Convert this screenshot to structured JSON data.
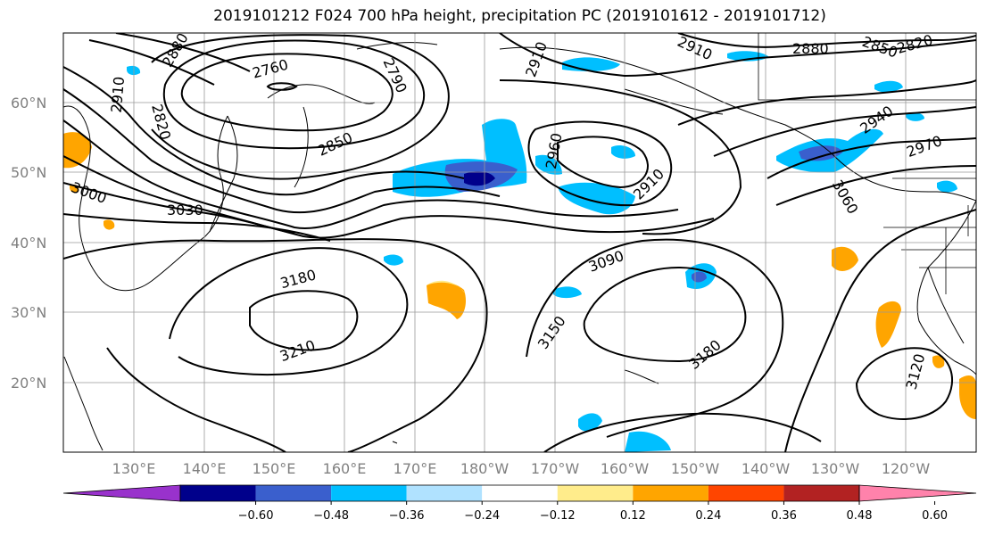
{
  "title": "2019101212 F024 700 hPa height, precipitation PC (2019101612 - 2019101712)",
  "lat_labels": [
    "60°N",
    "50°N",
    "40°N",
    "30°N",
    "20°N"
  ],
  "lon_labels": [
    "130°E",
    "140°E",
    "150°E",
    "160°E",
    "170°E",
    "180°W",
    "170°W",
    "160°W",
    "150°W",
    "140°W",
    "130°W",
    "120°W"
  ],
  "contour_labels": [
    "2880",
    "2760",
    "2790",
    "2910",
    "2820",
    "2850",
    "2910",
    "2880",
    "2850",
    "2820",
    "2940",
    "2970",
    "2910",
    "2960",
    "2910",
    "3060",
    "3000",
    "3030",
    "3090",
    "3180",
    "3150",
    "3180",
    "3210",
    "3120"
  ],
  "colorbar": {
    "ticks": [
      "−0.60",
      "−0.48",
      "−0.36",
      "−0.24",
      "−0.12",
      "0.12",
      "0.24",
      "0.36",
      "0.48",
      "0.60"
    ],
    "colors": [
      "#9932cc",
      "#00008b",
      "#3a5fcd",
      "#00bfff",
      "#b0e2ff",
      "#ffffff",
      "#ffec8b",
      "#ffa500",
      "#ff4500",
      "#b22222",
      "#ff82ab"
    ]
  }
}
